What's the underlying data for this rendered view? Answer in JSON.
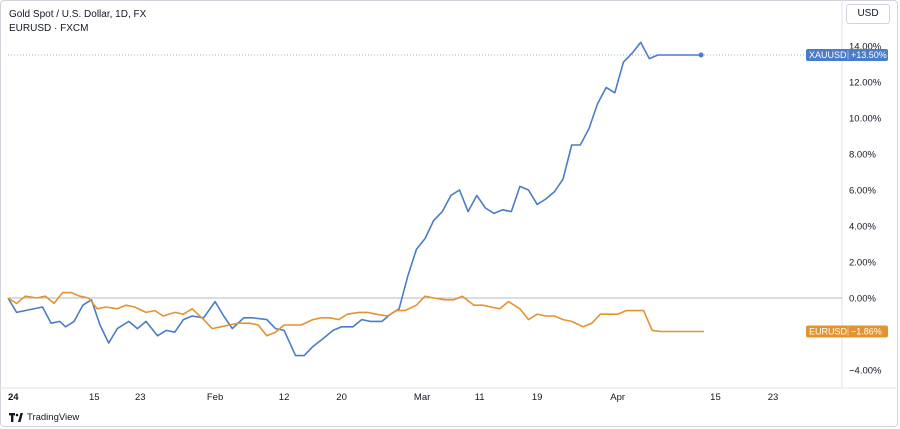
{
  "legend": {
    "line1": "Gold Spot / U.S. Dollar, 1D, FX",
    "line2": "EURUSD · FXCM"
  },
  "currency_button": "USD",
  "branding": "TradingView",
  "colors": {
    "xauusd": "#4a7cc9",
    "eurusd": "#e3932f",
    "zero_line": "#9aa0ab",
    "grid": "#f0f3fa"
  },
  "chart_data": {
    "type": "line",
    "ylabel": "%",
    "ylim": [
      -5.0,
      15.0
    ],
    "y_ticks": [
      "14.00%",
      "12.00%",
      "10.00%",
      "8.00%",
      "6.00%",
      "4.00%",
      "2.00%",
      "0.00%",
      "−4.00%"
    ],
    "y_tick_values": [
      14,
      12,
      10,
      8,
      6,
      4,
      2,
      0,
      -4
    ],
    "x_ticks": [
      "24",
      "15",
      "23",
      "Feb",
      "12",
      "20",
      "Mar",
      "11",
      "19",
      "Apr",
      "15",
      "23"
    ],
    "x_tick_values": [
      0,
      15,
      23,
      36,
      48,
      58,
      72,
      82,
      92,
      106,
      123,
      133
    ],
    "x_axis_first_label_bold": true,
    "xlim": [
      0,
      145
    ],
    "series": [
      {
        "name": "XAUUSD",
        "badge_label": "XAUUSD",
        "badge_value": "+13.50%",
        "x": [
          0,
          1.5,
          6,
          7.5,
          9,
          10,
          11.5,
          13,
          14.5,
          16,
          17.5,
          19,
          21,
          22.5,
          24,
          26,
          27.5,
          29,
          30.5,
          32,
          34,
          36,
          37.5,
          39,
          41,
          42.5,
          45,
          46.5,
          48,
          50,
          51.5,
          53,
          55,
          56.5,
          58,
          60,
          61.5,
          63,
          65,
          66.5,
          68,
          69.5,
          71,
          72.5,
          74,
          75.5,
          77,
          78.5,
          80,
          81.5,
          83,
          84.5,
          86,
          87.5,
          89,
          90.5,
          92,
          93.5,
          95,
          96.5,
          98,
          99.5,
          101,
          102.5,
          104,
          105.5,
          107,
          108.5,
          110,
          111.5,
          113,
          114.5,
          116,
          117.5,
          119,
          120.5
        ],
        "y": [
          0.0,
          -0.8,
          -0.5,
          -1.4,
          -1.3,
          -1.6,
          -1.3,
          -0.4,
          -0.1,
          -1.5,
          -2.5,
          -1.7,
          -1.3,
          -1.7,
          -1.3,
          -2.1,
          -1.8,
          -1.9,
          -1.2,
          -1.0,
          -1.1,
          -0.2,
          -1.0,
          -1.7,
          -1.1,
          -1.1,
          -1.2,
          -1.7,
          -1.8,
          -3.2,
          -3.2,
          -2.7,
          -2.2,
          -1.8,
          -1.6,
          -1.6,
          -1.2,
          -1.3,
          -1.3,
          -0.9,
          -0.6,
          1.2,
          2.7,
          3.3,
          4.3,
          4.8,
          5.7,
          6.0,
          4.8,
          5.7,
          5.0,
          4.7,
          4.9,
          4.8,
          6.2,
          6.0,
          5.2,
          5.5,
          5.9,
          6.6,
          8.5,
          8.5,
          9.4,
          10.8,
          11.7,
          11.4,
          13.1,
          13.6,
          14.2,
          13.3,
          13.5,
          13.5,
          13.5,
          13.5,
          13.5,
          13.5
        ],
        "last": 13.5
      },
      {
        "name": "EURUSD",
        "badge_label": "EURUSD",
        "badge_value": "−1.86%",
        "x": [
          0,
          1.5,
          3,
          5,
          6.5,
          8,
          9.5,
          11,
          12.5,
          14,
          15.5,
          17,
          19,
          20.5,
          22,
          24,
          25.5,
          27,
          29,
          30.5,
          32,
          34,
          35.5,
          37,
          38.5,
          40,
          42,
          43.5,
          45,
          46.5,
          48,
          49.5,
          51,
          53,
          54.5,
          56,
          57.5,
          59,
          61,
          62.5,
          64,
          66,
          67.5,
          69,
          71,
          72.5,
          74,
          76,
          77.5,
          79,
          81,
          82.5,
          84,
          85.5,
          87,
          89,
          90.5,
          92,
          93.5,
          95,
          96.5,
          98,
          100,
          101.5,
          103,
          104.5,
          106,
          107.5,
          109,
          110.5,
          112,
          113.5,
          115,
          116.5,
          118,
          119.5,
          121
        ],
        "y": [
          0.0,
          -0.3,
          0.1,
          0.0,
          0.1,
          -0.3,
          0.3,
          0.3,
          0.1,
          0.0,
          -0.6,
          -0.5,
          -0.6,
          -0.4,
          -0.5,
          -0.8,
          -0.7,
          -1.0,
          -0.8,
          -0.9,
          -0.6,
          -1.2,
          -1.7,
          -1.6,
          -1.5,
          -1.4,
          -1.4,
          -1.5,
          -2.1,
          -1.9,
          -1.5,
          -1.5,
          -1.5,
          -1.2,
          -1.1,
          -1.1,
          -1.2,
          -0.9,
          -0.8,
          -0.8,
          -0.9,
          -1.0,
          -0.7,
          -0.7,
          -0.4,
          0.1,
          0.0,
          -0.1,
          -0.1,
          0.1,
          -0.4,
          -0.4,
          -0.5,
          -0.6,
          -0.2,
          -0.6,
          -1.2,
          -0.9,
          -1.0,
          -1.0,
          -1.2,
          -1.3,
          -1.6,
          -1.4,
          -0.9,
          -0.9,
          -0.9,
          -0.7,
          -0.7,
          -0.7,
          -1.8,
          -1.86,
          -1.86,
          -1.86,
          -1.86,
          -1.86,
          -1.86
        ],
        "last": -1.86
      }
    ]
  }
}
